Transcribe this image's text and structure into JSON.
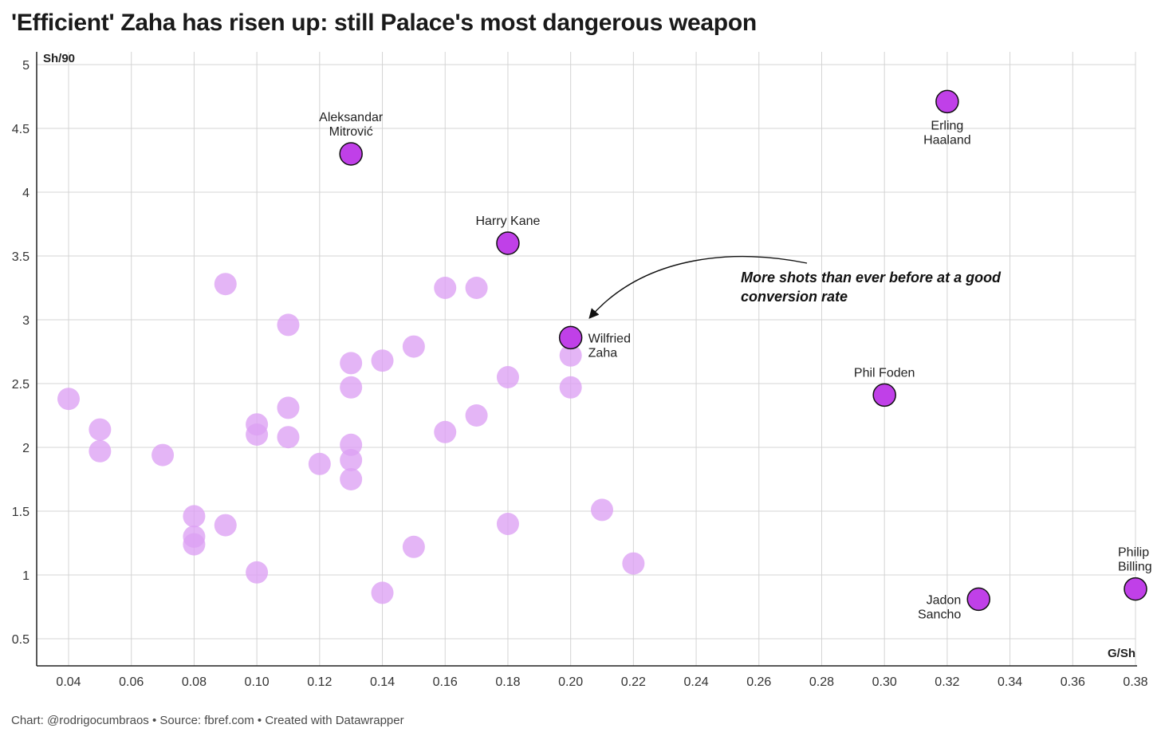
{
  "title": "'Efficient' Zaha has risen up: still Palace's most dangerous weapon",
  "footer": "Chart: @rodrigocumbraos • Source: fbref.com • Created with Datawrapper",
  "colors": {
    "highlight": "#c040e8",
    "background_point": "#dca0f4",
    "grid": "#d4d4d4",
    "axis": "#222222"
  },
  "chart_data": {
    "type": "scatter",
    "xlabel": "G/Sh",
    "ylabel": "Sh/90",
    "xlim": [
      0.03,
      0.38
    ],
    "ylim": [
      0.3,
      5.1
    ],
    "xticks": [
      "0.04",
      "0.06",
      "0.08",
      "0.10",
      "0.12",
      "0.14",
      "0.16",
      "0.18",
      "0.20",
      "0.22",
      "0.24",
      "0.26",
      "0.28",
      "0.30",
      "0.32",
      "0.34",
      "0.36",
      "0.38"
    ],
    "yticks": [
      "0.5",
      "1",
      "1.5",
      "2",
      "2.5",
      "3",
      "3.5",
      "4",
      "4.5",
      "5"
    ],
    "annotation": [
      "More shots than ever before at a good",
      "conversion rate"
    ],
    "highlighted": [
      {
        "name": [
          "Aleksandar",
          "Mitrović"
        ],
        "x": 0.13,
        "y": 4.3,
        "label_pos": "above"
      },
      {
        "name": [
          "Erling",
          "Haaland"
        ],
        "x": 0.32,
        "y": 4.71,
        "label_pos": "below"
      },
      {
        "name": [
          "Harry Kane"
        ],
        "x": 0.18,
        "y": 3.6,
        "label_pos": "above"
      },
      {
        "name": [
          "Wilfried",
          "Zaha"
        ],
        "x": 0.2,
        "y": 2.86,
        "label_pos": "right"
      },
      {
        "name": [
          "Phil Foden"
        ],
        "x": 0.3,
        "y": 2.41,
        "label_pos": "above"
      },
      {
        "name": [
          "Jadon",
          "Sancho"
        ],
        "x": 0.33,
        "y": 0.81,
        "label_pos": "left"
      },
      {
        "name": [
          "Philip",
          "Billing"
        ],
        "x": 0.38,
        "y": 0.89,
        "label_pos": "above-clipped"
      }
    ],
    "others": [
      {
        "x": 0.04,
        "y": 2.38
      },
      {
        "x": 0.05,
        "y": 2.14
      },
      {
        "x": 0.05,
        "y": 1.97
      },
      {
        "x": 0.07,
        "y": 1.94
      },
      {
        "x": 0.08,
        "y": 1.46
      },
      {
        "x": 0.08,
        "y": 1.3
      },
      {
        "x": 0.08,
        "y": 1.24
      },
      {
        "x": 0.09,
        "y": 3.28
      },
      {
        "x": 0.09,
        "y": 1.39
      },
      {
        "x": 0.1,
        "y": 2.18
      },
      {
        "x": 0.1,
        "y": 2.1
      },
      {
        "x": 0.1,
        "y": 1.02
      },
      {
        "x": 0.11,
        "y": 2.96
      },
      {
        "x": 0.11,
        "y": 2.31
      },
      {
        "x": 0.11,
        "y": 2.08
      },
      {
        "x": 0.12,
        "y": 1.87
      },
      {
        "x": 0.13,
        "y": 2.66
      },
      {
        "x": 0.13,
        "y": 2.47
      },
      {
        "x": 0.13,
        "y": 2.02
      },
      {
        "x": 0.13,
        "y": 1.9
      },
      {
        "x": 0.13,
        "y": 1.75
      },
      {
        "x": 0.14,
        "y": 2.68
      },
      {
        "x": 0.14,
        "y": 0.86
      },
      {
        "x": 0.15,
        "y": 2.79
      },
      {
        "x": 0.15,
        "y": 1.22
      },
      {
        "x": 0.16,
        "y": 3.25
      },
      {
        "x": 0.16,
        "y": 2.12
      },
      {
        "x": 0.17,
        "y": 3.25
      },
      {
        "x": 0.17,
        "y": 2.25
      },
      {
        "x": 0.18,
        "y": 2.55
      },
      {
        "x": 0.18,
        "y": 1.4
      },
      {
        "x": 0.2,
        "y": 2.72
      },
      {
        "x": 0.2,
        "y": 2.47
      },
      {
        "x": 0.21,
        "y": 1.51
      },
      {
        "x": 0.22,
        "y": 1.09
      }
    ]
  }
}
